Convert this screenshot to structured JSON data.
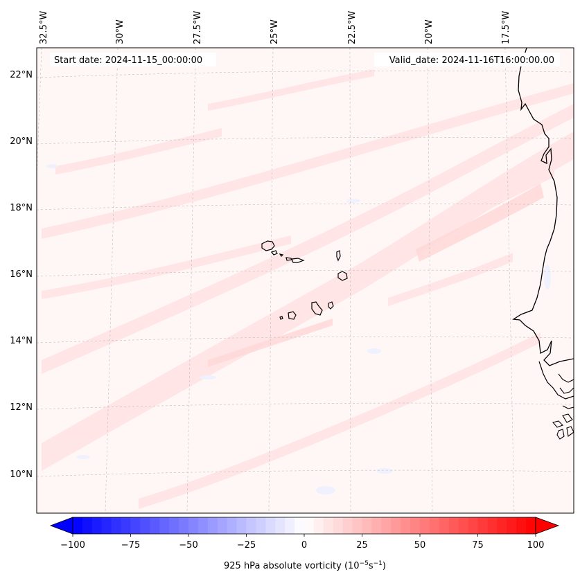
{
  "map": {
    "longitude_labels": [
      "32.5°W",
      "30°W",
      "27.5°W",
      "25°W",
      "22.5°W",
      "20°W",
      "17.5°W"
    ],
    "latitude_labels": [
      "22°N",
      "20°N",
      "18°N",
      "16°N",
      "14°N",
      "12°N",
      "10°N"
    ],
    "start_date": "Start date: 2024-11-15_00:00:00",
    "valid_date": "Valid_date: 2024-11-16T16:00:00.00",
    "features": {
      "coastline": "West African coast (Mauritania, Senegal, Gambia, Guinea-Bissau)",
      "islands": "Cape Verde Islands"
    }
  },
  "colorbar": {
    "min": -100,
    "max": 100,
    "ticks": [
      "−100",
      "−75",
      "−50",
      "−25",
      "0",
      "25",
      "50",
      "75",
      "100"
    ],
    "label_prefix": "925 hPa absolute vorticity (10",
    "label_exp1": "−5",
    "label_mid": "s",
    "label_exp2": "−1",
    "label_suffix": ")",
    "colormap": "bwr",
    "levels": 48
  },
  "colors": {
    "negative": "#0000ff",
    "zero": "#ffffff",
    "positive": "#ff0000",
    "background_field": "#fff5f5"
  }
}
